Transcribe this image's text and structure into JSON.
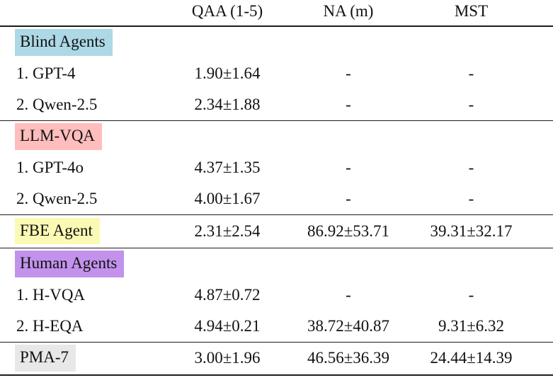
{
  "colors": {
    "background": "#ffffff",
    "text": "#111111",
    "rule": "#1c1c1c",
    "highlight_blue": "#ADD8E6",
    "highlight_pink": "#FFBDBD",
    "highlight_yellow": "#FAFAB4",
    "highlight_purple": "#C292EC",
    "highlight_gray": "#E8E8E8"
  },
  "table": {
    "header": {
      "col1": "",
      "col2": "QAA (1-5)",
      "col3": "NA (m)",
      "col4": "MST"
    },
    "groups": [
      {
        "section": {
          "label": "Blind Agents",
          "color": "#ADD8E6"
        },
        "rows": [
          {
            "label": "1. GPT-4",
            "values": [
              "1.90±1.64",
              "-",
              "-"
            ]
          },
          {
            "label": "2. Qwen-2.5",
            "values": [
              "2.34±1.88",
              "-",
              "-"
            ]
          }
        ]
      },
      {
        "section": {
          "label": "LLM-VQA",
          "color": "#FFBDBD"
        },
        "rows": [
          {
            "label": "1. GPT-4o",
            "values": [
              "4.37±1.35",
              "-",
              "-"
            ]
          },
          {
            "label": "2. Qwen-2.5",
            "values": [
              "4.00±1.67",
              "-",
              "-"
            ]
          }
        ]
      },
      {
        "section": null,
        "rows": [
          {
            "label": "FBE Agent",
            "color": "#FAFAB4",
            "values": [
              "2.31±2.54",
              "86.92±53.71",
              "39.31±32.17"
            ]
          }
        ]
      },
      {
        "section": {
          "label": "Human Agents",
          "color": "#C292EC"
        },
        "rows": [
          {
            "label": "1. H-VQA",
            "values": [
              "4.87±0.72",
              "-",
              "-"
            ]
          },
          {
            "label": "2. H-EQA",
            "values": [
              "4.94±0.21",
              "38.72±40.87",
              "9.31±6.32"
            ]
          }
        ]
      },
      {
        "section": null,
        "rows": [
          {
            "label": "PMA-7",
            "color": "#E8E8E8",
            "values": [
              "3.00±1.96",
              "46.56±36.39",
              "24.44±14.39"
            ]
          }
        ]
      }
    ]
  }
}
